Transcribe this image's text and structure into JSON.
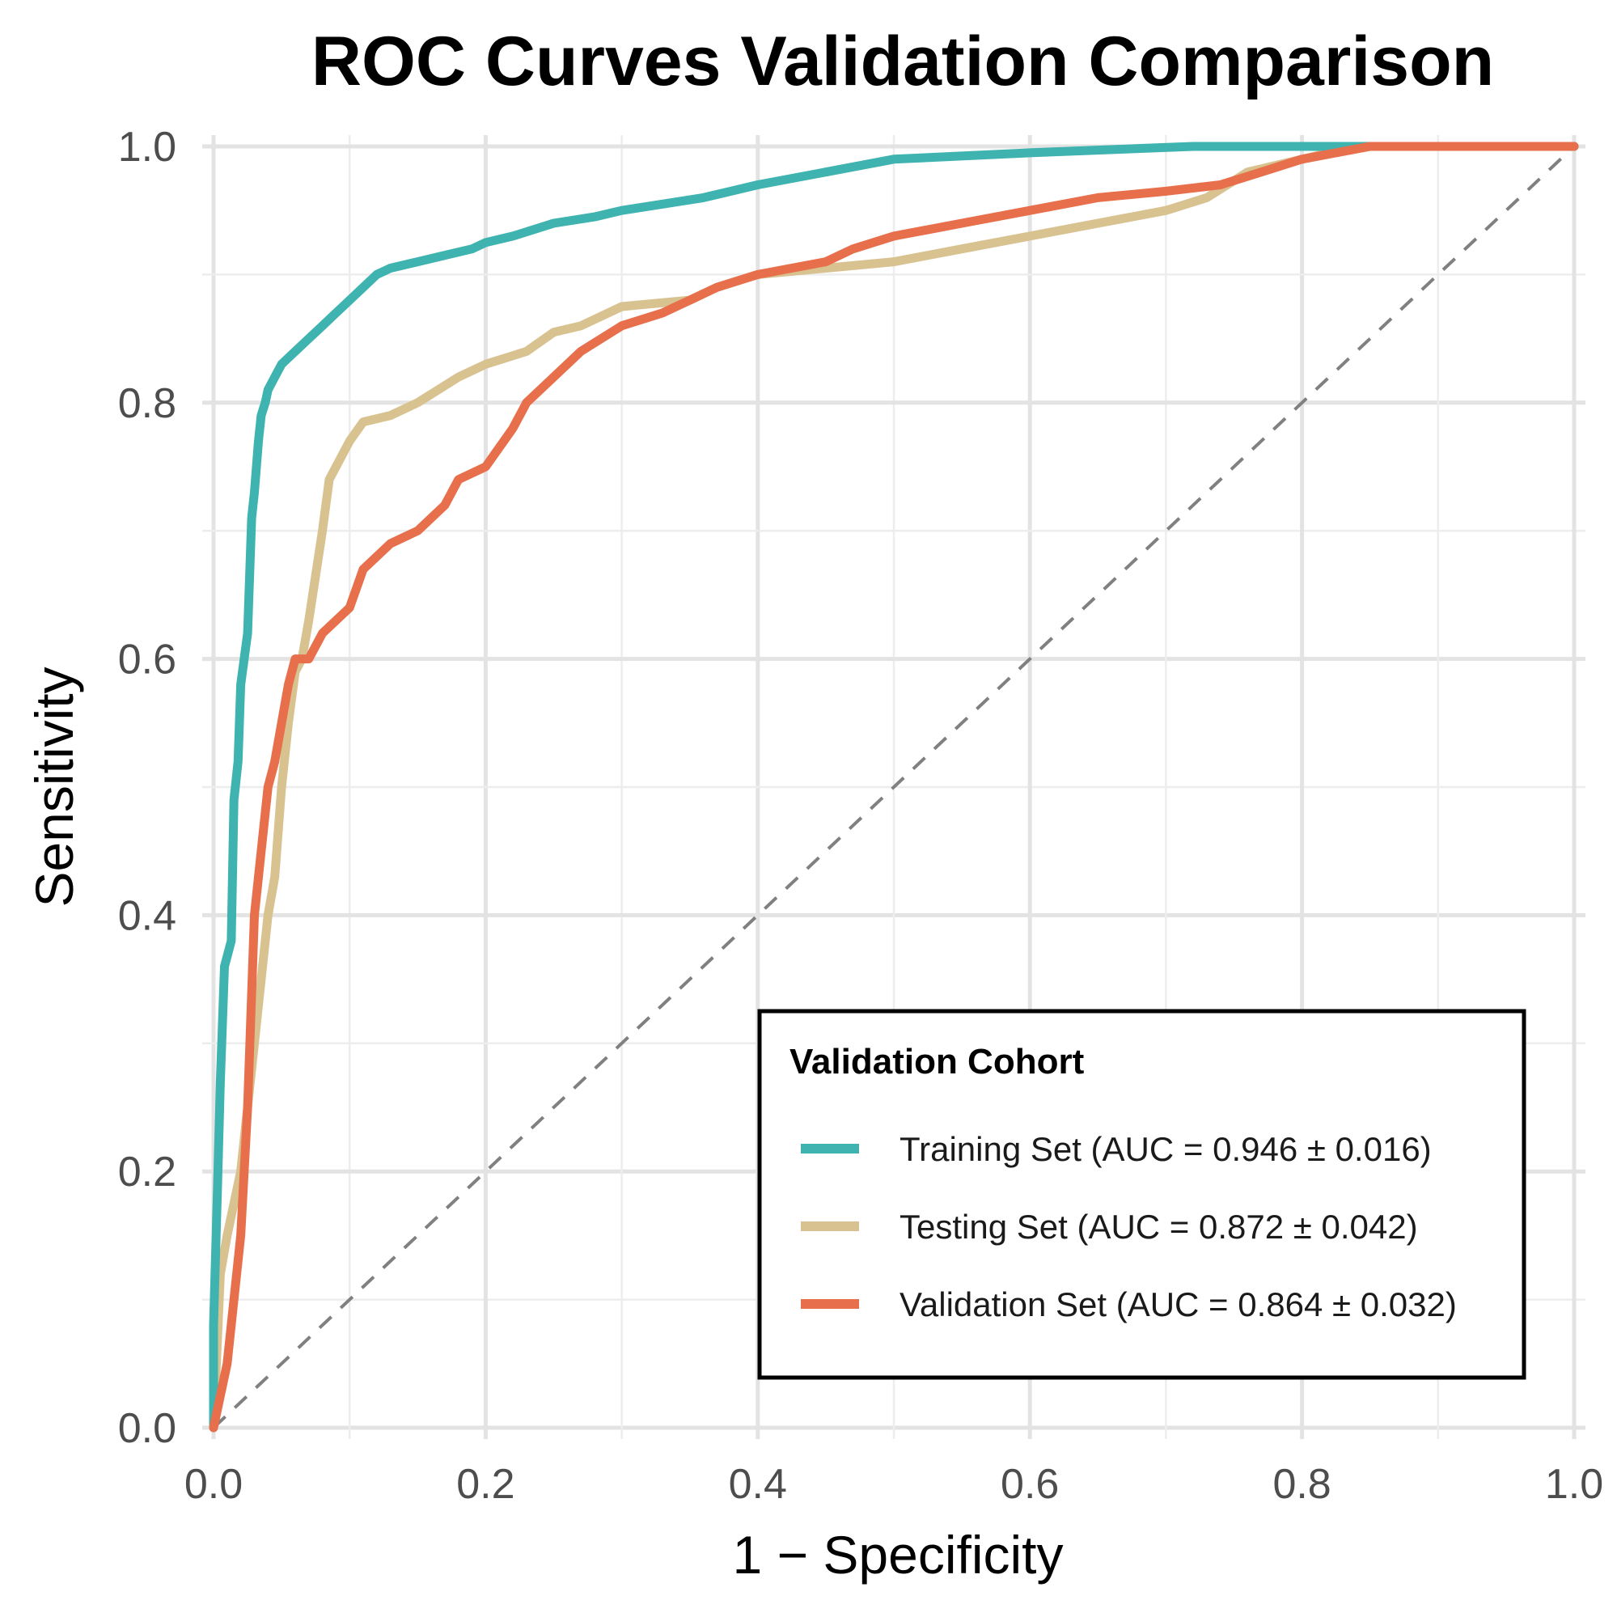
{
  "chart_data": {
    "type": "line",
    "title": "ROC Curves Validation Comparison",
    "xlabel": "1 − Specificity",
    "ylabel": "Sensitivity",
    "xlim": [
      0,
      1
    ],
    "ylim": [
      0,
      1
    ],
    "x_ticks": [
      "0.0",
      "0.2",
      "0.4",
      "0.6",
      "0.8",
      "1.0"
    ],
    "y_ticks": [
      "0.0",
      "0.2",
      "0.4",
      "0.6",
      "0.8",
      "1.0"
    ],
    "grid": true,
    "reference_line": {
      "x": [
        0,
        1
      ],
      "y": [
        0,
        1
      ],
      "style": "dashed",
      "color": "#808080"
    },
    "legend": {
      "title": "Validation Cohort",
      "placement": "bottom-right"
    },
    "series": [
      {
        "name": "Training Set (AUC = 0.946 ± 0.016)",
        "color": "#3EB3B0",
        "x": [
          0,
          0,
          0.003,
          0.005,
          0.008,
          0.013,
          0.015,
          0.018,
          0.02,
          0.025,
          0.028,
          0.03,
          0.033,
          0.035,
          0.038,
          0.04,
          0.045,
          0.05,
          0.06,
          0.07,
          0.08,
          0.09,
          0.1,
          0.11,
          0.12,
          0.13,
          0.15,
          0.17,
          0.19,
          0.2,
          0.22,
          0.25,
          0.28,
          0.3,
          0.33,
          0.36,
          0.4,
          0.45,
          0.5,
          0.6,
          0.72,
          0.8,
          1.0
        ],
        "y": [
          0,
          0.08,
          0.19,
          0.27,
          0.36,
          0.38,
          0.49,
          0.52,
          0.58,
          0.62,
          0.71,
          0.73,
          0.77,
          0.79,
          0.8,
          0.81,
          0.82,
          0.83,
          0.84,
          0.85,
          0.86,
          0.87,
          0.88,
          0.89,
          0.9,
          0.905,
          0.91,
          0.915,
          0.92,
          0.925,
          0.93,
          0.94,
          0.945,
          0.95,
          0.955,
          0.96,
          0.97,
          0.98,
          0.99,
          0.995,
          1.0,
          1.0,
          1.0
        ]
      },
      {
        "name": "Testing Set (AUC = 0.872 ± 0.042)",
        "color": "#D8C290",
        "x": [
          0,
          0.005,
          0.01,
          0.02,
          0.03,
          0.035,
          0.04,
          0.045,
          0.05,
          0.055,
          0.06,
          0.065,
          0.07,
          0.08,
          0.085,
          0.09,
          0.1,
          0.11,
          0.13,
          0.15,
          0.18,
          0.2,
          0.23,
          0.25,
          0.27,
          0.3,
          0.35,
          0.37,
          0.4,
          0.45,
          0.5,
          0.55,
          0.6,
          0.65,
          0.7,
          0.73,
          0.76,
          0.8,
          0.82,
          0.85,
          1.0
        ],
        "y": [
          0,
          0.12,
          0.15,
          0.2,
          0.3,
          0.35,
          0.4,
          0.43,
          0.5,
          0.55,
          0.59,
          0.6,
          0.63,
          0.7,
          0.74,
          0.75,
          0.77,
          0.785,
          0.79,
          0.8,
          0.82,
          0.83,
          0.84,
          0.855,
          0.86,
          0.875,
          0.88,
          0.89,
          0.9,
          0.905,
          0.91,
          0.92,
          0.93,
          0.94,
          0.95,
          0.96,
          0.98,
          0.99,
          0.995,
          1.0,
          1.0
        ]
      },
      {
        "name": "Validation Set (AUC = 0.864 ± 0.032)",
        "color": "#E86F4C",
        "x": [
          0,
          0.01,
          0.015,
          0.02,
          0.025,
          0.03,
          0.035,
          0.04,
          0.045,
          0.05,
          0.055,
          0.06,
          0.07,
          0.08,
          0.1,
          0.11,
          0.13,
          0.15,
          0.17,
          0.18,
          0.2,
          0.22,
          0.23,
          0.25,
          0.27,
          0.3,
          0.33,
          0.35,
          0.37,
          0.4,
          0.45,
          0.47,
          0.5,
          0.55,
          0.6,
          0.65,
          0.7,
          0.74,
          0.77,
          0.8,
          0.85,
          1.0
        ],
        "y": [
          0,
          0.05,
          0.1,
          0.15,
          0.25,
          0.4,
          0.45,
          0.5,
          0.52,
          0.55,
          0.58,
          0.6,
          0.6,
          0.62,
          0.64,
          0.67,
          0.69,
          0.7,
          0.72,
          0.74,
          0.75,
          0.78,
          0.8,
          0.82,
          0.84,
          0.86,
          0.87,
          0.88,
          0.89,
          0.9,
          0.91,
          0.92,
          0.93,
          0.94,
          0.95,
          0.96,
          0.965,
          0.97,
          0.98,
          0.99,
          1.0,
          1.0
        ]
      }
    ]
  }
}
